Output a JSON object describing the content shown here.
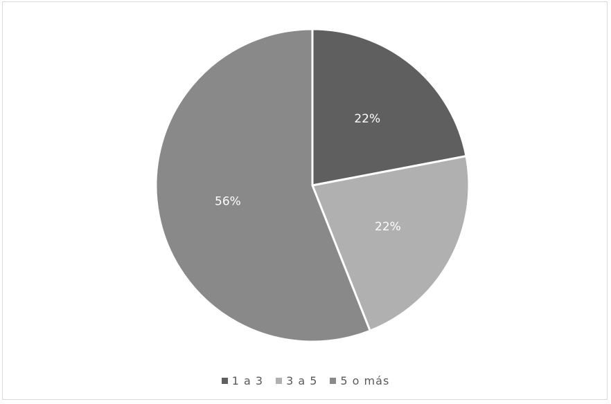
{
  "chart_data": {
    "type": "pie",
    "categories": [
      "1 a 3",
      "3 a 5",
      "5 o más"
    ],
    "values": [
      22,
      22,
      56
    ],
    "data_labels": [
      "22%",
      "22%",
      "56%"
    ],
    "colors": [
      "#5f5f5f",
      "#b0b0b0",
      "#898989"
    ],
    "label_color": "#ffffff",
    "legend_placement": "bottom",
    "start_angle_deg": 0,
    "direction": "clockwise"
  }
}
